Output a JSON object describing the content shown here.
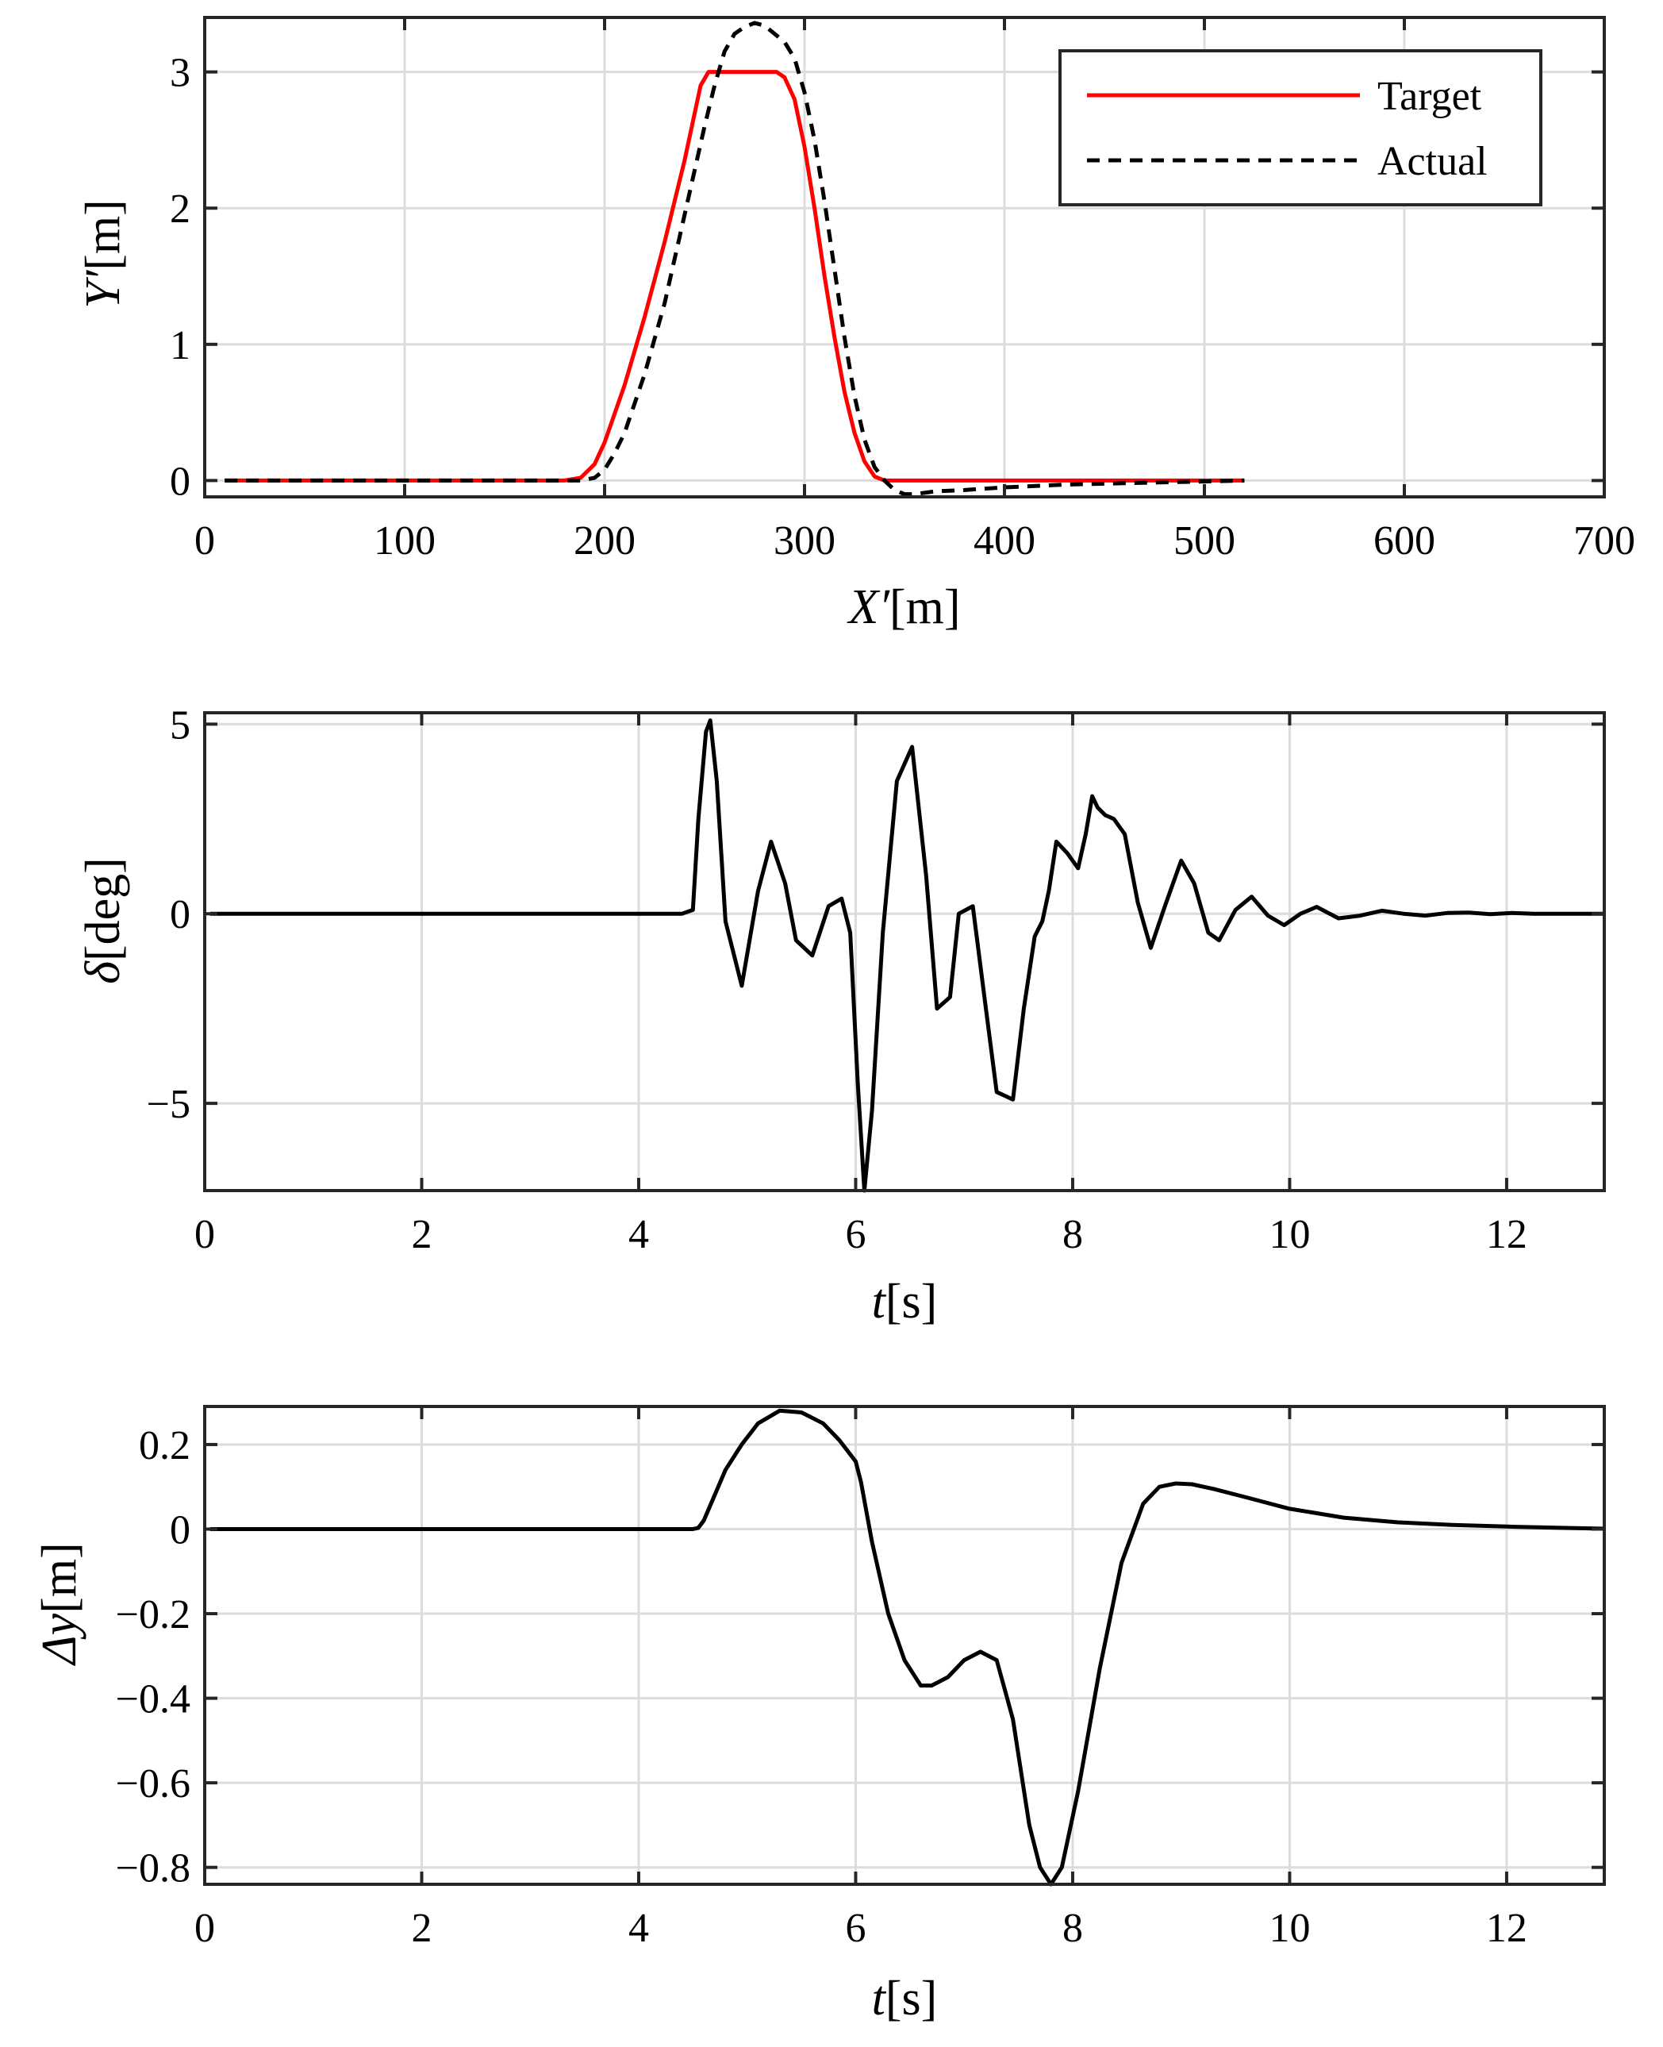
{
  "chart_data": [
    {
      "type": "line",
      "xlabel_var": "X′",
      "xlabel_unit": "[m]",
      "ylabel_var": "Y′",
      "ylabel_unit": "[m]",
      "xlim": [
        0,
        700
      ],
      "ylim": [
        -0.12,
        3.4
      ],
      "xticks": [
        0,
        100,
        200,
        300,
        400,
        500,
        600,
        700
      ],
      "xtick_labels": [
        "0",
        "100",
        "200",
        "300",
        "400",
        "500",
        "600",
        "700"
      ],
      "yticks": [
        0,
        1,
        2,
        3
      ],
      "ytick_labels": [
        "0",
        "1",
        "2",
        "3"
      ],
      "grid": true,
      "legend": "top-right",
      "series": [
        {
          "name": "Target",
          "color": "#ff0000",
          "style": "solid",
          "x": [
            10,
            180,
            188,
            195,
            200,
            210,
            220,
            230,
            240,
            248,
            252,
            260,
            270,
            280,
            286,
            290,
            295,
            300,
            305,
            310,
            315,
            320,
            325,
            330,
            335,
            340,
            345,
            520
          ],
          "y": [
            0,
            0,
            0.02,
            0.12,
            0.28,
            0.7,
            1.2,
            1.75,
            2.35,
            2.9,
            3.0,
            3.0,
            3.0,
            3.0,
            3.0,
            2.96,
            2.8,
            2.45,
            2.0,
            1.5,
            1.05,
            0.65,
            0.35,
            0.14,
            0.03,
            0,
            0,
            0
          ]
        },
        {
          "name": "Actual",
          "color": "#000000",
          "style": "dashed",
          "x": [
            10,
            188,
            195,
            200,
            205,
            210,
            220,
            230,
            240,
            250,
            255,
            260,
            265,
            270,
            275,
            280,
            285,
            290,
            295,
            300,
            305,
            310,
            315,
            320,
            325,
            330,
            335,
            340,
            345,
            350,
            355,
            365,
            380,
            400,
            430,
            460,
            490,
            520
          ],
          "y": [
            0,
            0,
            0.02,
            0.08,
            0.2,
            0.35,
            0.78,
            1.3,
            1.95,
            2.6,
            2.9,
            3.15,
            3.28,
            3.33,
            3.36,
            3.34,
            3.28,
            3.22,
            3.1,
            2.85,
            2.5,
            2.05,
            1.55,
            1.05,
            0.62,
            0.3,
            0.1,
            0.0,
            -0.07,
            -0.1,
            -0.1,
            -0.08,
            -0.07,
            -0.05,
            -0.03,
            -0.02,
            -0.01,
            0
          ]
        }
      ]
    },
    {
      "type": "line",
      "xlabel_var": "t",
      "xlabel_unit": "[s]",
      "ylabel_var": "δ",
      "ylabel_unit": "[deg]",
      "xlim": [
        0,
        12.9
      ],
      "ylim": [
        -7.3,
        5.3
      ],
      "xticks": [
        0,
        2,
        4,
        6,
        8,
        10,
        12
      ],
      "xtick_labels": [
        "0",
        "2",
        "4",
        "6",
        "8",
        "10",
        "12"
      ],
      "yticks": [
        -5,
        0,
        5
      ],
      "ytick_labels": [
        "−5",
        "0",
        "5"
      ],
      "grid": true,
      "series": [
        {
          "color": "#000000",
          "style": "solid",
          "x": [
            0.05,
            4.4,
            4.5,
            4.55,
            4.62,
            4.66,
            4.72,
            4.8,
            4.95,
            5.1,
            5.22,
            5.35,
            5.45,
            5.6,
            5.75,
            5.87,
            5.95,
            6.02,
            6.08,
            6.15,
            6.25,
            6.38,
            6.52,
            6.65,
            6.75,
            6.87,
            6.95,
            7.08,
            7.2,
            7.3,
            7.45,
            7.55,
            7.65,
            7.72,
            7.78,
            7.85,
            7.95,
            8.05,
            8.12,
            8.18,
            8.23,
            8.3,
            8.38,
            8.48,
            8.6,
            8.72,
            8.85,
            9.0,
            9.12,
            9.25,
            9.35,
            9.5,
            9.65,
            9.8,
            9.95,
            10.1,
            10.25,
            10.45,
            10.65,
            10.85,
            11.05,
            11.25,
            11.45,
            11.65,
            11.85,
            12.05,
            12.25,
            12.5,
            12.9
          ],
          "y": [
            0,
            0,
            0.1,
            2.5,
            4.8,
            5.1,
            3.5,
            -0.2,
            -1.9,
            0.6,
            1.9,
            0.8,
            -0.7,
            -1.1,
            0.2,
            0.4,
            -0.5,
            -4.5,
            -7.3,
            -5.2,
            -0.5,
            3.5,
            4.4,
            1.0,
            -2.5,
            -2.2,
            0.0,
            0.2,
            -2.5,
            -4.7,
            -4.9,
            -2.5,
            -0.6,
            -0.2,
            0.6,
            1.9,
            1.6,
            1.2,
            2.1,
            3.1,
            2.8,
            2.6,
            2.5,
            2.1,
            0.3,
            -0.9,
            0.2,
            1.4,
            0.8,
            -0.5,
            -0.7,
            0.1,
            0.45,
            -0.05,
            -0.3,
            0.0,
            0.18,
            -0.12,
            -0.05,
            0.08,
            0.0,
            -0.05,
            0.02,
            0.03,
            -0.01,
            0.02,
            0.0,
            0.0,
            0.0
          ]
        }
      ]
    },
    {
      "type": "line",
      "xlabel_var": "t",
      "xlabel_unit": "[s]",
      "ylabel_var": "Δy",
      "ylabel_unit": "[m]",
      "xlim": [
        0,
        12.9
      ],
      "ylim": [
        -0.84,
        0.29
      ],
      "xticks": [
        0,
        2,
        4,
        6,
        8,
        10,
        12
      ],
      "xtick_labels": [
        "0",
        "2",
        "4",
        "6",
        "8",
        "10",
        "12"
      ],
      "yticks": [
        -0.8,
        -0.6,
        -0.4,
        -0.2,
        0,
        0.2
      ],
      "ytick_labels": [
        "−0.8",
        "−0.6",
        "−0.4",
        "−0.2",
        "0",
        "0.2"
      ],
      "grid": true,
      "series": [
        {
          "color": "#000000",
          "style": "solid",
          "x": [
            0.05,
            4.5,
            4.55,
            4.6,
            4.7,
            4.8,
            4.95,
            5.1,
            5.3,
            5.5,
            5.7,
            5.85,
            6.0,
            6.05,
            6.15,
            6.3,
            6.45,
            6.6,
            6.7,
            6.85,
            7.0,
            7.15,
            7.3,
            7.45,
            7.6,
            7.7,
            7.8,
            7.9,
            8.05,
            8.25,
            8.45,
            8.65,
            8.8,
            8.95,
            9.1,
            9.3,
            9.6,
            10.0,
            10.5,
            11.0,
            11.5,
            12.0,
            12.5,
            12.9
          ],
          "y": [
            0,
            0,
            0.003,
            0.02,
            0.08,
            0.14,
            0.2,
            0.25,
            0.28,
            0.276,
            0.25,
            0.21,
            0.16,
            0.11,
            -0.03,
            -0.2,
            -0.31,
            -0.37,
            -0.37,
            -0.35,
            -0.31,
            -0.29,
            -0.31,
            -0.45,
            -0.7,
            -0.8,
            -0.84,
            -0.8,
            -0.62,
            -0.33,
            -0.08,
            0.06,
            0.1,
            0.108,
            0.106,
            0.095,
            0.075,
            0.048,
            0.027,
            0.016,
            0.01,
            0.006,
            0.003,
            0.001
          ]
        }
      ]
    }
  ]
}
